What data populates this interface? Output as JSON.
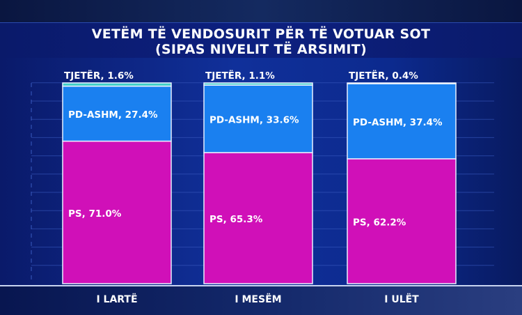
{
  "chart_data": {
    "type": "bar",
    "stacked": true,
    "title": [
      "VETËM TË VENDOSURIT PËR TË VOTUAR SOT",
      "(SIPAS NIVELIT TË ARSIMIT)"
    ],
    "categories": [
      "I LARTË",
      "I MESËM",
      "I ULËT"
    ],
    "series": [
      {
        "name": "PS",
        "values": [
          71.0,
          65.3,
          62.2
        ],
        "labels": [
          "PS, 71.0%",
          "PS, 65.3%",
          "PS, 62.2%"
        ],
        "color": "#d010b8"
      },
      {
        "name": "PD-ASHM",
        "values": [
          27.4,
          33.6,
          37.4
        ],
        "labels": [
          "PD-ASHM, 27.4%",
          "PD-ASHM, 33.6%",
          "PD-ASHM, 37.4%"
        ],
        "color": "#1a80f0"
      },
      {
        "name": "TJETËR",
        "values": [
          1.6,
          1.1,
          0.4
        ],
        "labels": [
          "TJETËR, 1.6%",
          "TJETËR, 1.1%",
          "TJETËR, 0.4%"
        ],
        "color": "#40d0c8"
      }
    ],
    "ylim": [
      0,
      100
    ],
    "grid": true
  }
}
